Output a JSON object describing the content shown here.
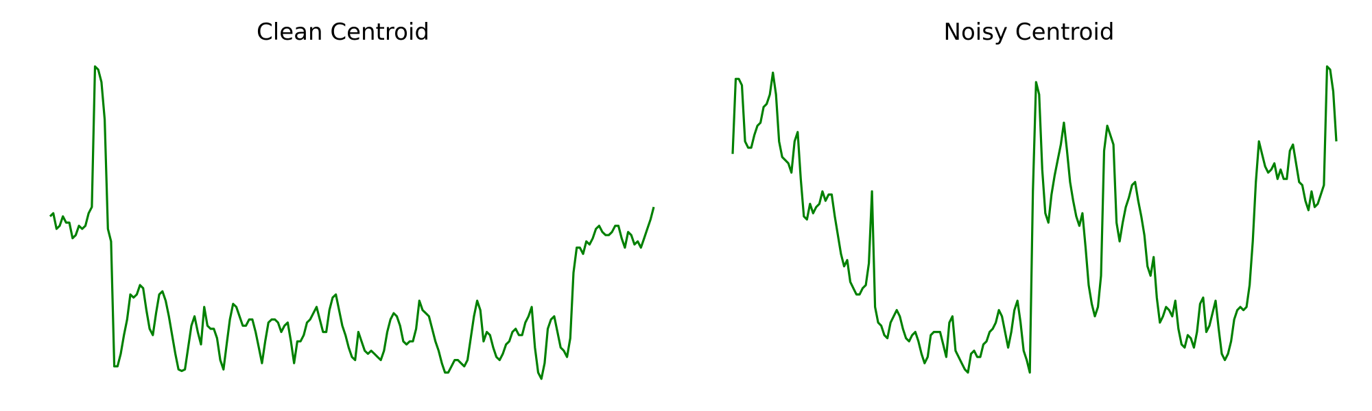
{
  "chart_data": [
    {
      "type": "line",
      "title": "Clean Centroid",
      "xlabel": "",
      "ylabel": "",
      "axes_visible": false,
      "grid": false,
      "legend": "none",
      "line_color": "#008000",
      "ylim": [
        0,
        1
      ],
      "series": [
        {
          "values": [
            0.52,
            0.53,
            0.48,
            0.49,
            0.52,
            0.5,
            0.5,
            0.45,
            0.46,
            0.49,
            0.48,
            0.49,
            0.53,
            0.55,
            1.0,
            0.99,
            0.95,
            0.83,
            0.48,
            0.44,
            0.04,
            0.04,
            0.08,
            0.14,
            0.19,
            0.27,
            0.26,
            0.27,
            0.3,
            0.29,
            0.22,
            0.16,
            0.14,
            0.21,
            0.27,
            0.28,
            0.25,
            0.2,
            0.14,
            0.08,
            0.03,
            0.025,
            0.03,
            0.1,
            0.17,
            0.2,
            0.15,
            0.11,
            0.23,
            0.17,
            0.16,
            0.16,
            0.13,
            0.06,
            0.03,
            0.11,
            0.19,
            0.24,
            0.23,
            0.2,
            0.17,
            0.17,
            0.19,
            0.19,
            0.15,
            0.1,
            0.05,
            0.12,
            0.18,
            0.19,
            0.19,
            0.18,
            0.15,
            0.17,
            0.18,
            0.12,
            0.05,
            0.12,
            0.12,
            0.14,
            0.18,
            0.19,
            0.21,
            0.23,
            0.19,
            0.15,
            0.15,
            0.22,
            0.26,
            0.27,
            0.22,
            0.17,
            0.14,
            0.1,
            0.07,
            0.06,
            0.15,
            0.12,
            0.09,
            0.08,
            0.09,
            0.08,
            0.07,
            0.06,
            0.09,
            0.15,
            0.19,
            0.21,
            0.2,
            0.17,
            0.12,
            0.11,
            0.12,
            0.12,
            0.16,
            0.25,
            0.22,
            0.21,
            0.2,
            0.16,
            0.12,
            0.09,
            0.05,
            0.02,
            0.02,
            0.04,
            0.06,
            0.06,
            0.05,
            0.04,
            0.06,
            0.13,
            0.2,
            0.25,
            0.22,
            0.12,
            0.15,
            0.14,
            0.1,
            0.07,
            0.06,
            0.08,
            0.11,
            0.12,
            0.15,
            0.16,
            0.14,
            0.14,
            0.18,
            0.2,
            0.23,
            0.1,
            0.02,
            0.0,
            0.05,
            0.16,
            0.19,
            0.2,
            0.15,
            0.1,
            0.09,
            0.07,
            0.13,
            0.34,
            0.42,
            0.42,
            0.4,
            0.44,
            0.43,
            0.45,
            0.48,
            0.49,
            0.47,
            0.46,
            0.46,
            0.47,
            0.49,
            0.49,
            0.45,
            0.42,
            0.47,
            0.46,
            0.43,
            0.44,
            0.42,
            0.45,
            0.48,
            0.51,
            0.55
          ]
        }
      ]
    },
    {
      "type": "line",
      "title": "Noisy Centroid",
      "xlabel": "",
      "ylabel": "",
      "axes_visible": false,
      "grid": false,
      "legend": "none",
      "line_color": "#008000",
      "ylim": [
        0,
        1
      ],
      "series": [
        {
          "values": [
            0.72,
            0.96,
            0.96,
            0.94,
            0.76,
            0.74,
            0.74,
            0.78,
            0.81,
            0.82,
            0.87,
            0.88,
            0.91,
            0.98,
            0.91,
            0.76,
            0.71,
            0.7,
            0.69,
            0.66,
            0.76,
            0.79,
            0.64,
            0.52,
            0.51,
            0.56,
            0.53,
            0.55,
            0.56,
            0.6,
            0.57,
            0.59,
            0.59,
            0.52,
            0.46,
            0.4,
            0.36,
            0.38,
            0.31,
            0.29,
            0.27,
            0.27,
            0.29,
            0.3,
            0.37,
            0.6,
            0.23,
            0.18,
            0.17,
            0.14,
            0.13,
            0.18,
            0.2,
            0.22,
            0.2,
            0.16,
            0.13,
            0.12,
            0.14,
            0.15,
            0.12,
            0.08,
            0.05,
            0.07,
            0.14,
            0.15,
            0.15,
            0.15,
            0.11,
            0.07,
            0.18,
            0.2,
            0.09,
            0.07,
            0.05,
            0.03,
            0.02,
            0.08,
            0.09,
            0.07,
            0.07,
            0.11,
            0.12,
            0.15,
            0.16,
            0.18,
            0.22,
            0.2,
            0.15,
            0.1,
            0.15,
            0.22,
            0.25,
            0.18,
            0.09,
            0.06,
            0.02,
            0.6,
            0.95,
            0.91,
            0.67,
            0.53,
            0.5,
            0.59,
            0.65,
            0.7,
            0.75,
            0.82,
            0.73,
            0.63,
            0.57,
            0.52,
            0.49,
            0.53,
            0.42,
            0.3,
            0.24,
            0.2,
            0.23,
            0.33,
            0.73,
            0.81,
            0.78,
            0.75,
            0.5,
            0.44,
            0.5,
            0.55,
            0.58,
            0.62,
            0.63,
            0.57,
            0.52,
            0.46,
            0.36,
            0.33,
            0.39,
            0.26,
            0.18,
            0.2,
            0.23,
            0.22,
            0.2,
            0.25,
            0.16,
            0.11,
            0.1,
            0.14,
            0.13,
            0.1,
            0.15,
            0.24,
            0.26,
            0.15,
            0.17,
            0.21,
            0.25,
            0.16,
            0.08,
            0.06,
            0.08,
            0.12,
            0.19,
            0.22,
            0.23,
            0.22,
            0.23,
            0.3,
            0.44,
            0.63,
            0.76,
            0.72,
            0.68,
            0.66,
            0.67,
            0.69,
            0.64,
            0.67,
            0.64,
            0.64,
            0.73,
            0.75,
            0.69,
            0.63,
            0.62,
            0.57,
            0.54,
            0.6,
            0.55,
            0.56,
            0.59,
            0.62,
            1.0,
            0.99,
            0.92,
            0.76
          ]
        }
      ]
    }
  ]
}
